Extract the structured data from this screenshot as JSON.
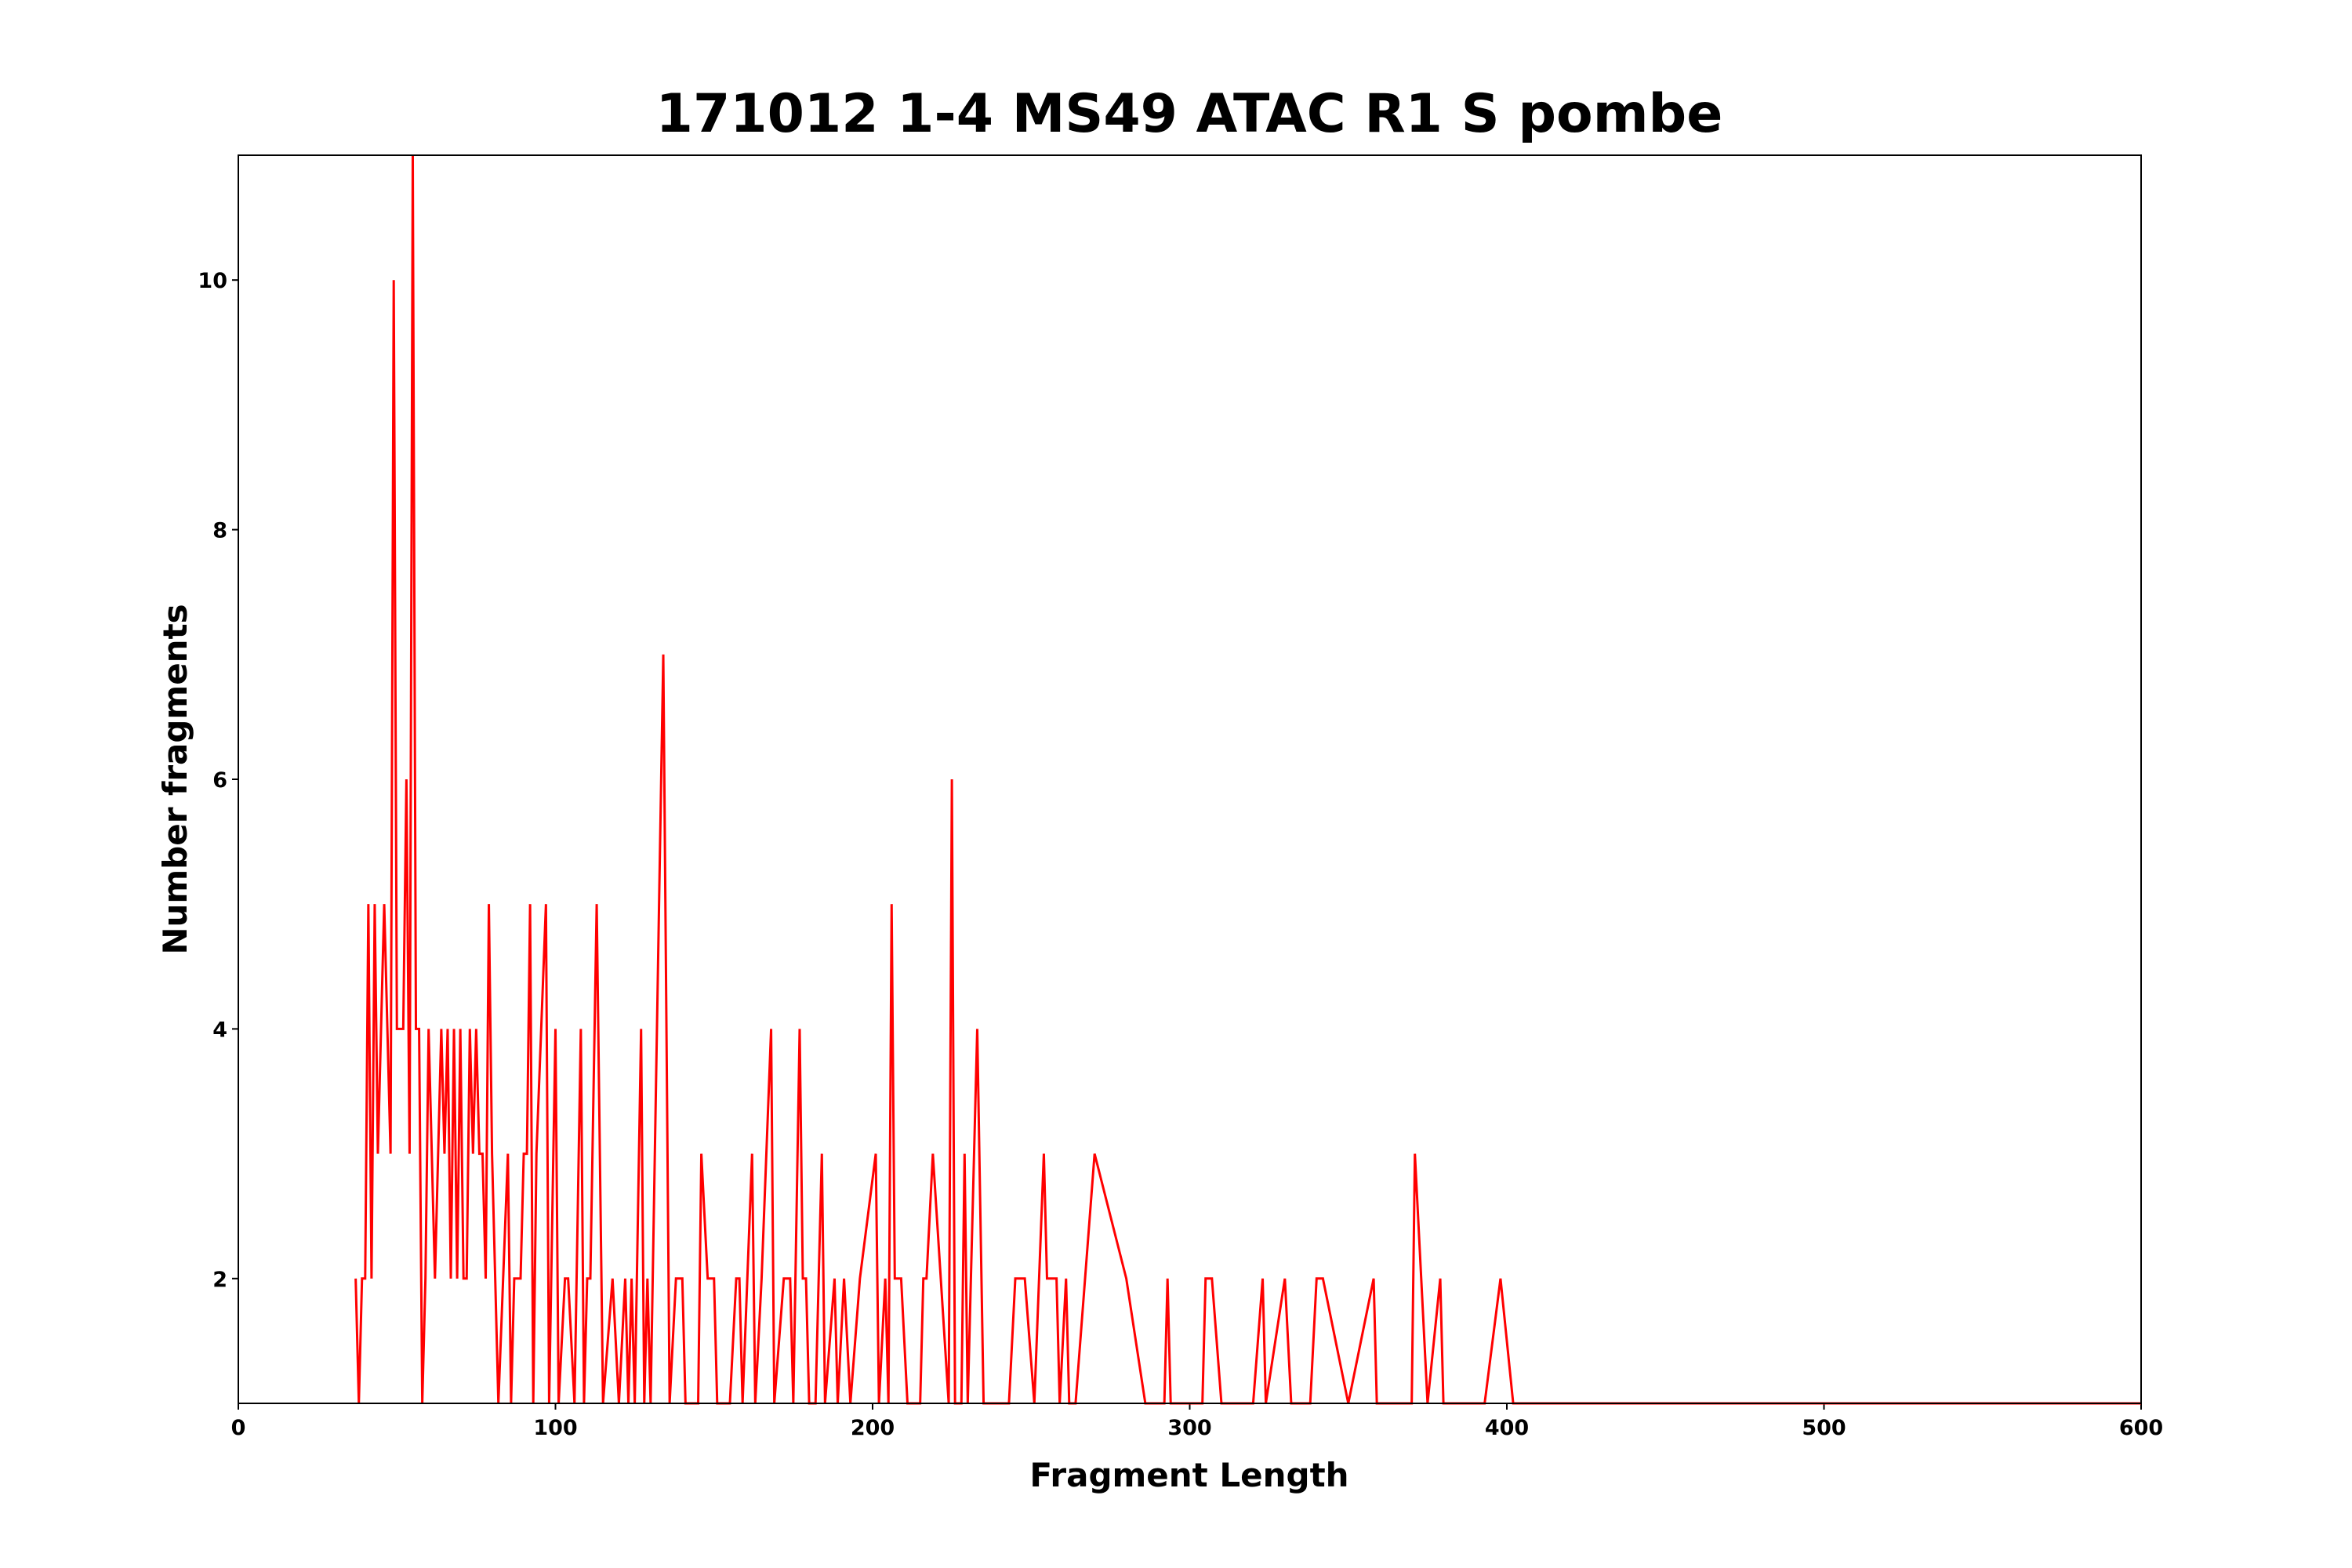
{
  "chart_data": {
    "type": "line",
    "title": "171012 1-4 MS49 ATAC R1 S pombe",
    "x_label": "Fragment Length",
    "y_label": "Number fragments",
    "xlim": [
      0,
      600
    ],
    "xticks": [
      0,
      100,
      200,
      300,
      400,
      500,
      600
    ],
    "ylim": [
      1,
      11
    ],
    "yticks": [
      2,
      4,
      6,
      8,
      10
    ],
    "series": [
      {
        "color": "#ff0000",
        "x": [
          37,
          38,
          39,
          40,
          41,
          42,
          43,
          44,
          45,
          46,
          47,
          48,
          49,
          50,
          51,
          52,
          53,
          54,
          55,
          56,
          57,
          58,
          59,
          60,
          61,
          62,
          64,
          65,
          66,
          67,
          68,
          69,
          70,
          71,
          72,
          73,
          74,
          75,
          76,
          77,
          78,
          79,
          80,
          82,
          85,
          86,
          87,
          89,
          90,
          91,
          92,
          93,
          94,
          97,
          98,
          100,
          101,
          103,
          104,
          106,
          108,
          109,
          110,
          111,
          113,
          115,
          118,
          120,
          122,
          123,
          124,
          125,
          127,
          128,
          129,
          130,
          134,
          136,
          138,
          140,
          141,
          145,
          146,
          148,
          150,
          151,
          155,
          157,
          158,
          159,
          162,
          163,
          165,
          168,
          169,
          172,
          174,
          175,
          177,
          178,
          179,
          180,
          182,
          184,
          185,
          188,
          189,
          191,
          193,
          196,
          201,
          202,
          204,
          205,
          206,
          207,
          209,
          211,
          215,
          216,
          217,
          219,
          224,
          225,
          226,
          228,
          229,
          230,
          233,
          235,
          243,
          245,
          248,
          251,
          254,
          255,
          258,
          259,
          261,
          262,
          264,
          270,
          280,
          286,
          292,
          293,
          294,
          304,
          305,
          307,
          310,
          320,
          323,
          324,
          330,
          332,
          338,
          340,
          342,
          350,
          358,
          359,
          370,
          371,
          375,
          379,
          380,
          393,
          398,
          402,
          600
        ],
        "values": [
          2,
          1,
          2,
          2,
          5,
          2,
          5,
          3,
          4,
          5,
          4,
          3,
          10,
          4,
          4,
          4,
          6,
          3,
          11,
          4,
          4,
          1,
          2,
          4,
          3,
          2,
          4,
          3,
          4,
          2,
          4,
          2,
          4,
          2,
          2,
          4,
          3,
          4,
          3,
          3,
          2,
          5,
          3,
          1,
          3,
          1,
          2,
          2,
          3,
          3,
          5,
          1,
          3,
          5,
          1,
          4,
          1,
          2,
          2,
          1,
          4,
          1,
          2,
          2,
          5,
          1,
          2,
          1,
          2,
          1,
          2,
          1,
          4,
          1,
          2,
          1,
          7,
          1,
          2,
          2,
          1,
          1,
          3,
          2,
          2,
          1,
          1,
          2,
          2,
          1,
          3,
          1,
          2,
          4,
          1,
          2,
          2,
          1,
          4,
          2,
          2,
          1,
          1,
          3,
          1,
          2,
          1,
          2,
          1,
          2,
          3,
          1,
          2,
          1,
          5,
          2,
          2,
          1,
          1,
          2,
          2,
          3,
          1,
          6,
          1,
          1,
          3,
          1,
          4,
          1,
          1,
          2,
          2,
          1,
          3,
          2,
          2,
          1,
          2,
          1,
          1,
          3,
          2,
          1,
          1,
          2,
          1,
          1,
          2,
          2,
          1,
          1,
          2,
          1,
          2,
          1,
          1,
          2,
          2,
          1,
          2,
          1,
          1,
          3,
          1,
          2,
          1,
          1,
          2,
          1,
          1
        ]
      }
    ]
  }
}
